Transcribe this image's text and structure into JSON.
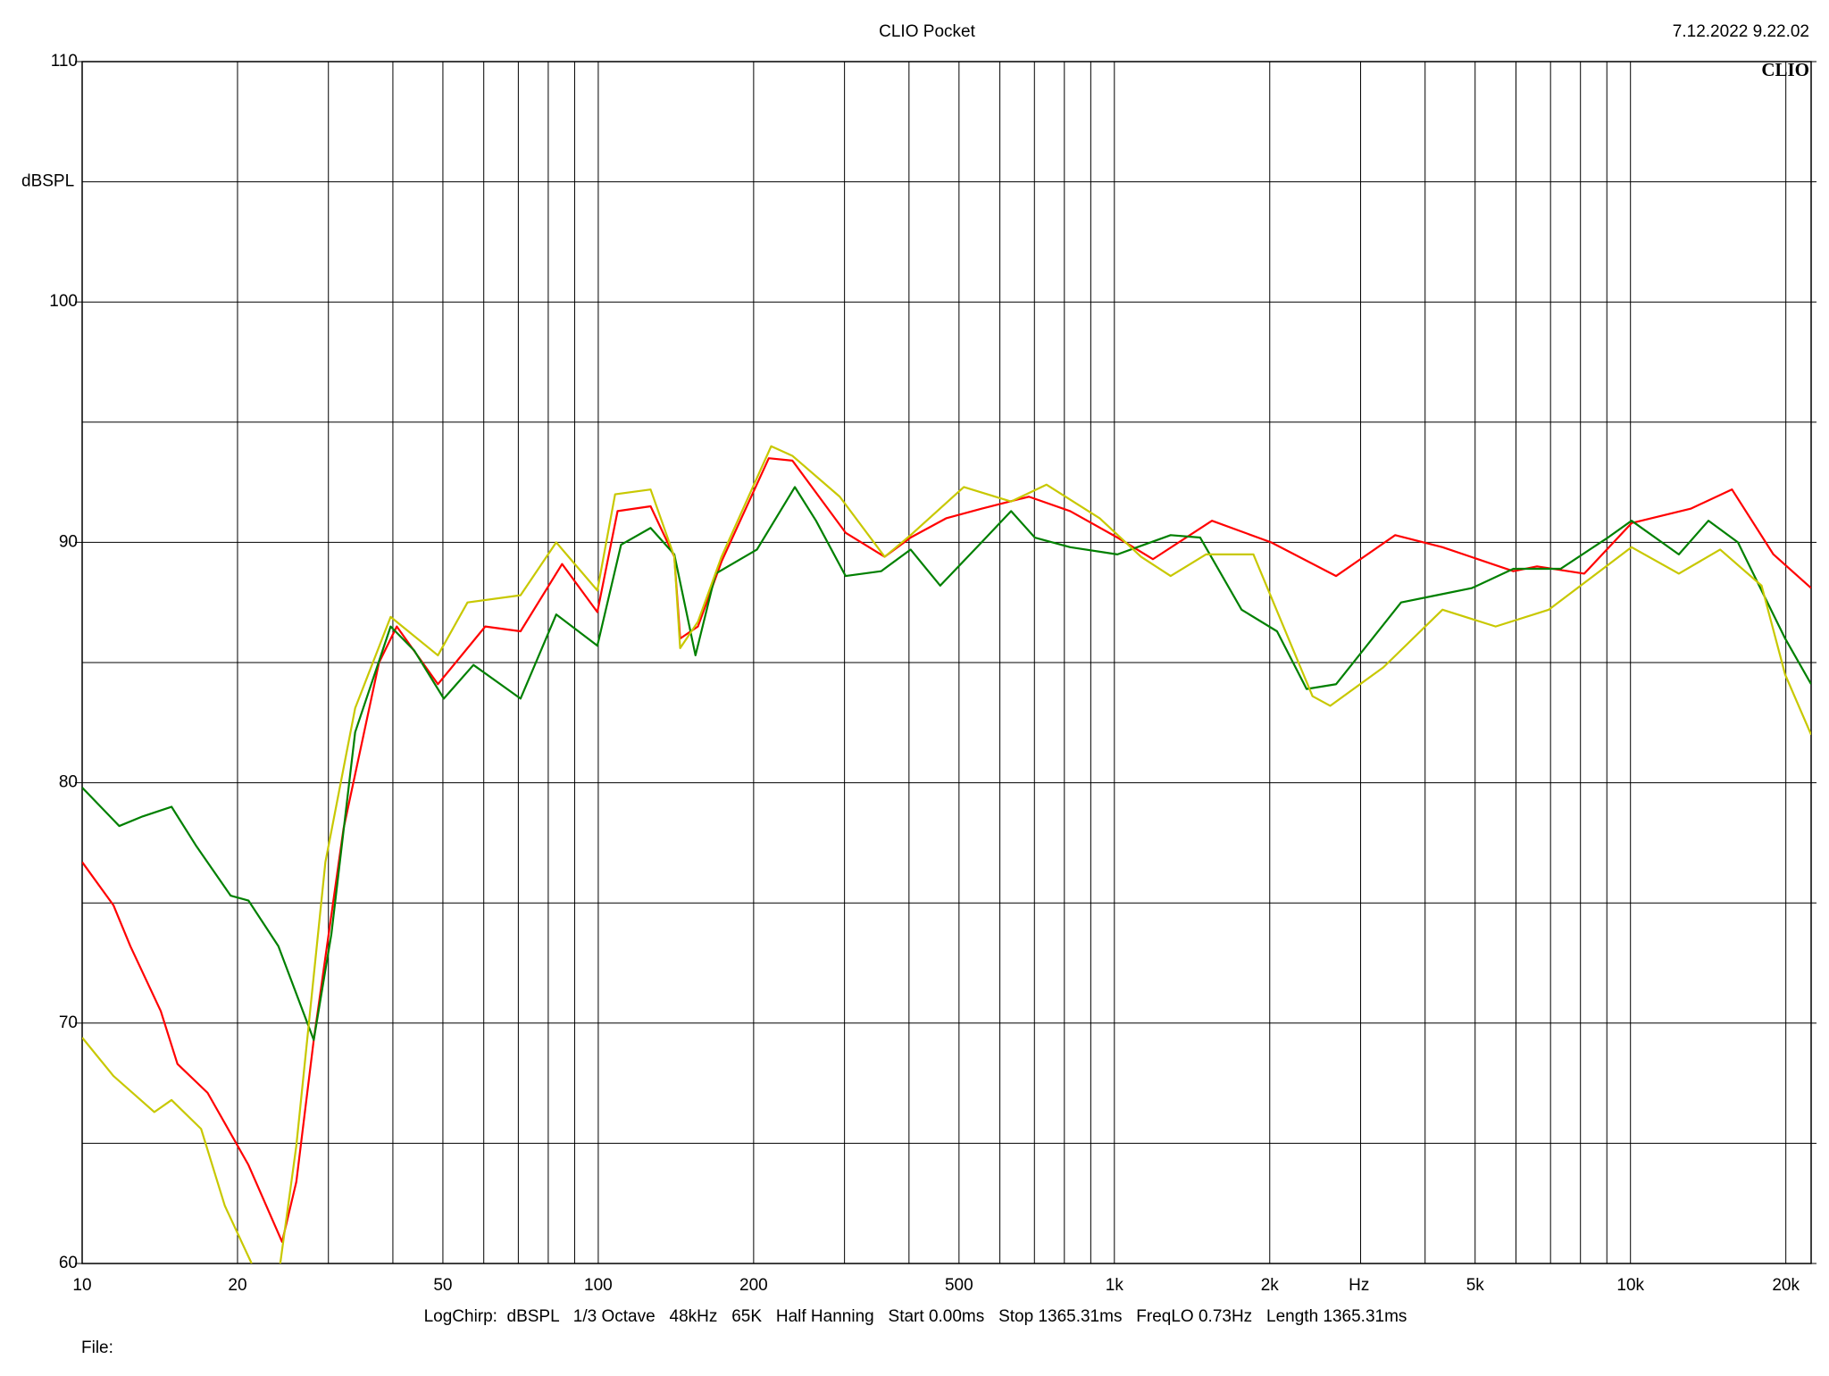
{
  "chart_data": {
    "type": "line",
    "title": "CLIO Pocket",
    "timestamp": "7.12.2022 9.22.02",
    "logo": "CLIO",
    "ylabel": "dBSPL",
    "xlabel": "Hz",
    "footer": "LogChirp:  dBSPL   1/3 Octave   48kHz   65K   Half Hanning   Start 0.00ms   Stop 1365.31ms   FreqLO 0.73Hz   Length 1365.31ms",
    "file_label": "File:",
    "xscale": "log",
    "xlim": [
      10,
      22390
    ],
    "ylim": [
      60,
      110
    ],
    "xticks": [
      10,
      20,
      50,
      100,
      200,
      500,
      {
        "value": 1000,
        "label": "1k"
      },
      {
        "value": 2000,
        "label": "2k"
      },
      {
        "value": 5000,
        "label": "5k"
      },
      {
        "value": 10000,
        "label": "10k"
      },
      {
        "value": 20000,
        "label": "20k"
      }
    ],
    "xgrid_minor": [
      30,
      40,
      60,
      70,
      80,
      90,
      300,
      400,
      600,
      700,
      800,
      900,
      3000,
      4000,
      6000,
      7000,
      8000,
      9000
    ],
    "yticks": [
      60,
      70,
      80,
      90,
      100,
      110
    ],
    "ygrid_minor": [
      65,
      75,
      85,
      95,
      105
    ],
    "grid": true,
    "series": [
      {
        "color": "#ff0000",
        "x": [
          10,
          11.5,
          12.4,
          14.2,
          15.3,
          17.5,
          21.0,
          24.4,
          26.0,
          28.1,
          32.1,
          37.6,
          40.7,
          48.9,
          60.4,
          70.7,
          85.1,
          99.6,
          109.0,
          126.3,
          140.4,
          144.1,
          156.0,
          173.3,
          214.0,
          237.8,
          301.5,
          358.9,
          402.9,
          472.0,
          552.9,
          682.9,
          821.1,
          1013.7,
          1187.5,
          1545.6,
          2012.4,
          2689.4,
          3500.3,
          4322.6,
          5931,
          6591,
          8137,
          10048,
          13080,
          15730,
          18920,
          22390
        ],
        "values": [
          76.7,
          74.9,
          73.2,
          70.5,
          68.3,
          67.1,
          64.1,
          60.9,
          63.4,
          69.3,
          78.1,
          85.0,
          86.5,
          84.1,
          86.5,
          86.3,
          89.1,
          87.1,
          91.3,
          91.5,
          89.4,
          86.0,
          86.5,
          89.2,
          93.5,
          93.4,
          90.4,
          89.4,
          90.2,
          91.0,
          91.4,
          91.9,
          91.3,
          90.2,
          89.3,
          90.9,
          90.0,
          88.6,
          90.3,
          89.8,
          88.8,
          89.0,
          88.7,
          90.8,
          91.4,
          92.2,
          89.5,
          88.1
        ]
      },
      {
        "color": "#008000",
        "x": [
          10,
          11.8,
          13.1,
          14.9,
          16.6,
          19.4,
          21.0,
          24.0,
          28.1,
          30.4,
          33.8,
          39.6,
          44.0,
          50.2,
          57.3,
          70.7,
          82.9,
          99.6,
          110.7,
          126.3,
          140.4,
          154.3,
          168.8,
          203.0,
          240.4,
          264.2,
          301.5,
          353.2,
          402.9,
          459.7,
          552.9,
          630.8,
          701.2,
          821.1,
          1013.7,
          1285.3,
          1466.4,
          1763.9,
          2066.2,
          2357.6,
          2689.4,
          3593.4,
          4209.8,
          4932,
          5931,
          7323,
          9043,
          10048,
          12408,
          14160,
          16150,
          19940,
          22390
        ],
        "values": [
          79.8,
          78.2,
          78.6,
          79.0,
          77.4,
          75.3,
          75.1,
          73.2,
          69.3,
          73.7,
          82.1,
          86.5,
          85.5,
          83.5,
          84.9,
          83.5,
          87.0,
          85.7,
          89.9,
          90.6,
          89.5,
          85.3,
          88.7,
          89.7,
          92.3,
          90.9,
          88.6,
          88.8,
          89.7,
          88.2,
          90.0,
          91.3,
          90.2,
          89.8,
          89.5,
          90.3,
          90.2,
          87.2,
          86.3,
          83.9,
          84.1,
          87.5,
          87.8,
          88.1,
          88.9,
          88.9,
          90.2,
          90.9,
          89.5,
          90.9,
          90.0,
          86.0,
          84.1
        ]
      },
      {
        "color": "#c8c800",
        "x": [
          10,
          11.5,
          13.8,
          14.9,
          17.0,
          18.9,
          21.3,
          22.5,
          24.2,
          26.0,
          29.6,
          33.8,
          39.6,
          48.9,
          55.8,
          70.7,
          82.9,
          99.6,
          107.8,
          126.3,
          140.4,
          144.1,
          156.0,
          173.3,
          216.3,
          237.8,
          293.7,
          358.9,
          402.9,
          510.9,
          630.8,
          738.9,
          936.7,
          1126.6,
          1285.3,
          1505.6,
          1859.4,
          2420.8,
          2619.3,
          3320.4,
          4322.6,
          5480,
          6947,
          10048,
          12408,
          14920,
          17950,
          19940,
          22390
        ],
        "values": [
          69.4,
          67.8,
          66.3,
          66.8,
          65.6,
          62.4,
          60,
          null,
          60,
          64.9,
          76.7,
          83.1,
          86.9,
          85.3,
          87.5,
          87.8,
          90.0,
          88.0,
          92.0,
          92.2,
          89.4,
          85.6,
          86.7,
          89.4,
          94.0,
          93.6,
          91.9,
          89.4,
          90.3,
          92.3,
          91.7,
          92.4,
          91.0,
          89.4,
          88.6,
          89.5,
          89.5,
          83.6,
          83.2,
          84.8,
          87.2,
          86.5,
          87.2,
          89.8,
          88.7,
          89.7,
          88.2,
          84.5,
          82.0
        ]
      }
    ]
  }
}
